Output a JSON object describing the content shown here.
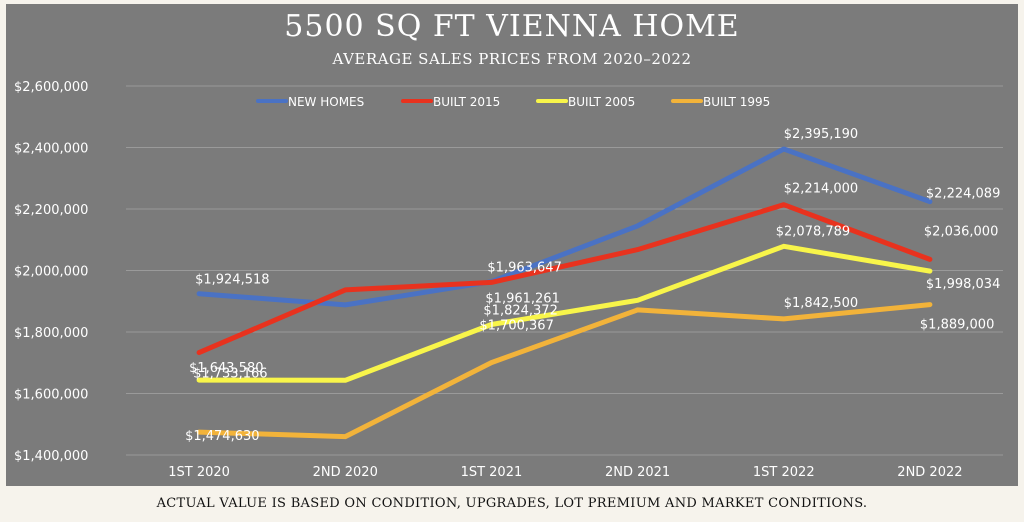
{
  "chart_data": {
    "type": "line",
    "title": "5500 SQ FT VIENNA HOME",
    "subtitle": "AVERAGE SALES PRICES FROM 2020–2022",
    "categories": [
      "1ST 2020",
      "2ND 2020",
      "1ST 2021",
      "2ND 2021",
      "1ST 2022",
      "2ND 2022"
    ],
    "ylim": [
      1400000,
      2600000
    ],
    "yticks": [
      1400000,
      1600000,
      1800000,
      2000000,
      2200000,
      2400000,
      2600000
    ],
    "ytick_labels": [
      "$1,400,000",
      "$1,600,000",
      "$1,800,000",
      "$2,000,000",
      "$2,200,000",
      "$2,400,000",
      "$2,600,000"
    ],
    "grid": true,
    "legend_position": "top",
    "series": [
      {
        "name": "NEW HOMES",
        "color": "#4a72c4",
        "values": [
          1924518,
          1888000,
          1963647,
          2145000,
          2395190,
          2224089
        ],
        "labels": [
          "$1,924,518",
          "",
          "$1,963,647",
          "",
          "$2,395,190",
          "$2,224,089"
        ]
      },
      {
        "name": "BUILT 2015",
        "color": "#e8321e",
        "values": [
          1733166,
          1937000,
          1961261,
          2068000,
          2214000,
          2036000
        ],
        "labels": [
          "$1,733,166",
          "",
          "$1,961,261",
          "",
          "$2,214,000",
          "$2,036,000"
        ]
      },
      {
        "name": "BUILT 2005",
        "color": "#f8f54a",
        "values": [
          1643580,
          1643000,
          1824372,
          1903000,
          2078789,
          1998034
        ],
        "labels": [
          "$1,643,580",
          "",
          "$1,824,372",
          "",
          "$2,078,789",
          "$1,998,034"
        ]
      },
      {
        "name": "BUILT 1995",
        "color": "#f2b33a",
        "values": [
          1474630,
          1460000,
          1700367,
          1872000,
          1842500,
          1889000
        ],
        "labels": [
          "$1,474,630",
          "",
          "$1,700,367",
          "",
          "$1,842,500",
          "$1,889,000"
        ]
      }
    ]
  },
  "footer": "ACTUAL VALUE IS BASED ON CONDITION, UPGRADES, LOT PREMIUM AND MARKET CONDITIONS.",
  "colors": {
    "page_background": "#f6f3ec",
    "plot_background": "#7b7b7b",
    "grid": "#9a9a9a"
  }
}
